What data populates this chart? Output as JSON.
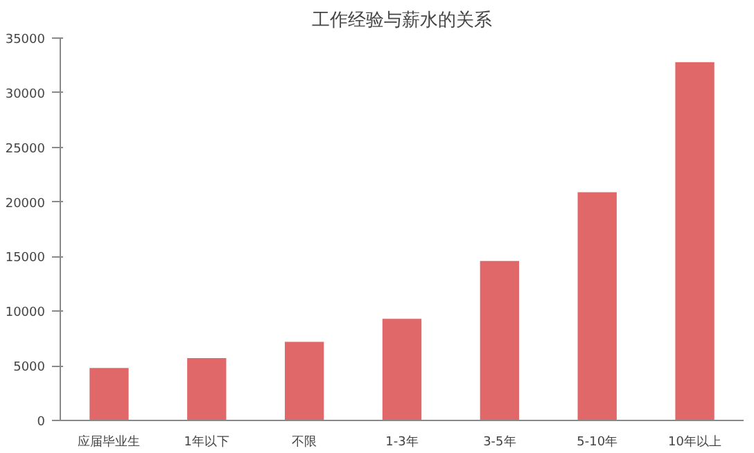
{
  "chart_data": {
    "type": "bar",
    "title": "工作经验与薪水的关系",
    "categories": [
      "应届毕业生",
      "1年以下",
      "不限",
      "1-3年",
      "3-5年",
      "5-10年",
      "10年以上"
    ],
    "values": [
      4800,
      5700,
      7200,
      9300,
      14600,
      20900,
      32800
    ],
    "color": "#e06868",
    "ylim": [
      0,
      35000
    ],
    "yticks": [
      0,
      5000,
      10000,
      15000,
      20000,
      25000,
      30000,
      35000
    ],
    "grid": false
  }
}
